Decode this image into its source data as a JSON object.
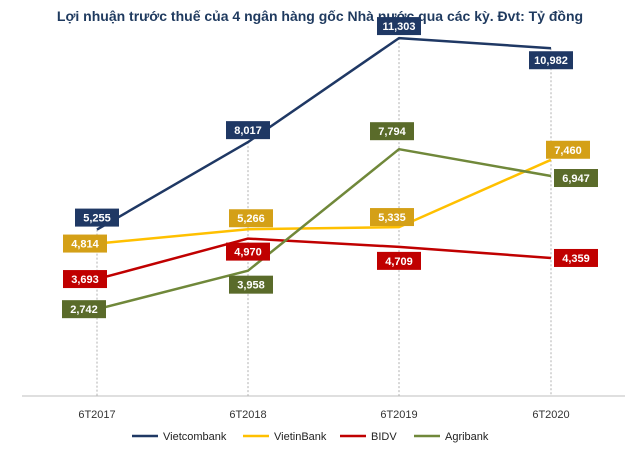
{
  "chart_data": {
    "type": "line",
    "title": "Lợi nhuận trước thuế của 4 ngân hàng gốc Nhà nước qua các kỳ. Đvt: Tỷ đồng",
    "xlabel": "",
    "ylabel": "",
    "categories": [
      "6T2017",
      "6T2018",
      "6T2019",
      "6T2020"
    ],
    "ylim": [
      0,
      12000
    ],
    "grid": false,
    "legend_position": "bottom",
    "series": [
      {
        "name": "Vietcombank",
        "color": "#1f3864",
        "values": [
          5255,
          8017,
          11303,
          10982
        ],
        "labels": [
          "5,255",
          "8,017",
          "11,303",
          "10,982"
        ]
      },
      {
        "name": "VietinBank",
        "color": "#ffc000",
        "label_color": "#d4a017",
        "values": [
          4814,
          5266,
          5335,
          7460
        ],
        "labels": [
          "4,814",
          "5,266",
          "5,335",
          "7,460"
        ]
      },
      {
        "name": "BIDV",
        "color": "#c00000",
        "values": [
          3693,
          4970,
          4709,
          4359
        ],
        "labels": [
          "3,693",
          "4,970",
          "4,709",
          "4,359"
        ]
      },
      {
        "name": "Agribank",
        "color": "#70883a",
        "label_color": "#5a6b2a",
        "values": [
          2742,
          3958,
          7794,
          6947
        ],
        "labels": [
          "2,742",
          "3,958",
          "7,794",
          "6,947"
        ]
      }
    ]
  }
}
